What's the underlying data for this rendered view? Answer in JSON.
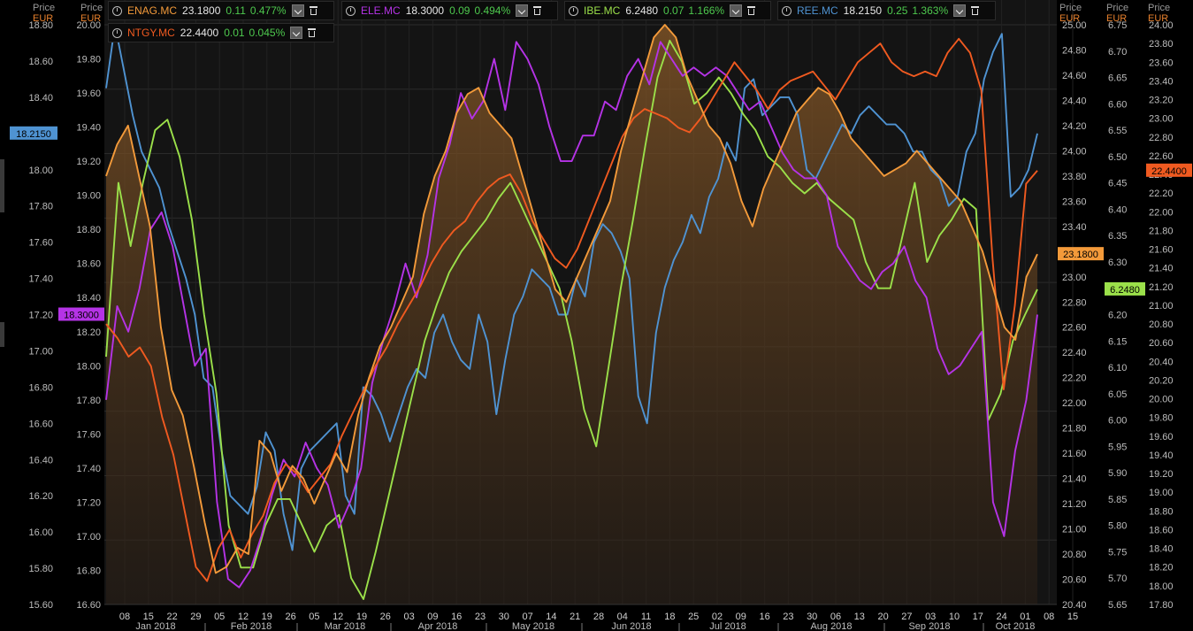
{
  "legend": [
    {
      "symbol": "ENAG.MC",
      "price": "23.1800",
      "change": "0.11",
      "pct": "0.477%",
      "color": "#f39a3a"
    },
    {
      "symbol": "ELE.MC",
      "price": "18.3000",
      "change": "0.09",
      "pct": "0.494%",
      "color": "#b533e6"
    },
    {
      "symbol": "IBE.MC",
      "price": "6.2480",
      "change": "0.07",
      "pct": "1.166%",
      "color": "#9be04a"
    },
    {
      "symbol": "REE.MC",
      "price": "18.2150",
      "change": "0.25",
      "pct": "1.363%",
      "color": "#4f93d2"
    },
    {
      "symbol": "NTGY.MC",
      "price": "22.4400",
      "change": "0.01",
      "pct": "0.045%",
      "color": "#f05a20"
    }
  ],
  "axis_heads": {
    "a1": {
      "p": "Price",
      "u": "EUR"
    },
    "a2": {
      "p": "Price",
      "u": "EUR"
    },
    "a3": {
      "p": "Price",
      "u": "EUR"
    },
    "a4": {
      "p": "Price",
      "u": "EUR"
    },
    "a5": {
      "p": "Price",
      "u": "EUR"
    }
  },
  "chart_data": {
    "type": "line",
    "x_ticks": [
      "08",
      "15",
      "22",
      "29",
      "05",
      "12",
      "19",
      "26",
      "05",
      "12",
      "19",
      "26",
      "03",
      "09",
      "16",
      "23",
      "30",
      "07",
      "14",
      "21",
      "28",
      "04",
      "11",
      "18",
      "25",
      "02",
      "09",
      "16",
      "23",
      "30",
      "06",
      "13",
      "20",
      "27",
      "03",
      "10",
      "17",
      "24",
      "01",
      "08",
      "15"
    ],
    "months": [
      "Jan 2018",
      "Feb 2018",
      "Mar 2018",
      "Apr 2018",
      "May 2018",
      "Jun 2018",
      "Jul 2018",
      "Aug 2018",
      "Sep 2018",
      "Oct 2018"
    ],
    "axes": {
      "REE": {
        "ticks": [
          "18.80",
          "18.60",
          "18.40",
          "18.20",
          "18.00",
          "17.80",
          "17.60",
          "17.40",
          "17.20",
          "17.00",
          "16.80",
          "16.60",
          "16.40",
          "16.20",
          "16.00",
          "15.80",
          "15.60"
        ],
        "min": 15.6,
        "max": 18.8
      },
      "ELE": {
        "ticks": [
          "20.00",
          "19.80",
          "19.60",
          "19.40",
          "19.20",
          "19.00",
          "18.80",
          "18.60",
          "18.40",
          "18.20",
          "18.00",
          "17.80",
          "17.60",
          "17.40",
          "17.20",
          "17.00",
          "16.80",
          "16.60"
        ],
        "min": 16.6,
        "max": 20.0
      },
      "ENAG": {
        "ticks": [
          "25.00",
          "24.80",
          "24.60",
          "24.40",
          "24.20",
          "24.00",
          "23.80",
          "23.60",
          "23.40",
          "23.20",
          "23.00",
          "22.80",
          "22.60",
          "22.40",
          "22.20",
          "22.00",
          "21.80",
          "21.60",
          "21.40",
          "21.20",
          "21.00",
          "20.80",
          "20.60",
          "20.40"
        ],
        "min": 20.4,
        "max": 25.0
      },
      "IBE": {
        "ticks": [
          "6.75",
          "6.70",
          "6.65",
          "6.60",
          "6.55",
          "6.50",
          "6.45",
          "6.40",
          "6.35",
          "6.30",
          "6.25",
          "6.20",
          "6.15",
          "6.10",
          "6.05",
          "6.00",
          "5.95",
          "5.90",
          "5.85",
          "5.80",
          "5.75",
          "5.70",
          "5.65"
        ],
        "min": 5.65,
        "max": 6.75
      },
      "NTGY": {
        "ticks": [
          "24.00",
          "23.80",
          "23.60",
          "23.40",
          "23.20",
          "23.00",
          "22.80",
          "22.60",
          "22.40",
          "22.20",
          "22.00",
          "21.80",
          "21.60",
          "21.40",
          "21.20",
          "21.00",
          "20.80",
          "20.60",
          "20.40",
          "20.20",
          "20.00",
          "19.80",
          "19.60",
          "19.40",
          "19.20",
          "19.00",
          "18.80",
          "18.60",
          "18.40",
          "18.20",
          "18.00",
          "17.80"
        ],
        "min": 17.8,
        "max": 24.0
      }
    },
    "last_labels": {
      "REE": "18.2150",
      "ELE": "18.3000",
      "ENAG": "23.1800",
      "IBE": "6.2480",
      "NTGY": "22.4400"
    },
    "series": [
      {
        "name": "REE.MC",
        "axis": "REE",
        "color": "#4f93d2",
        "values": [
          18.45,
          18.8,
          18.55,
          18.3,
          18.1,
          18.0,
          17.9,
          17.7,
          17.55,
          17.4,
          17.2,
          16.85,
          16.8,
          16.45,
          16.2,
          16.15,
          16.1,
          16.25,
          16.55,
          16.45,
          16.1,
          15.9,
          16.35,
          16.45,
          16.5,
          16.55,
          16.6,
          16.2,
          16.1,
          16.8,
          16.75,
          16.65,
          16.5,
          16.65,
          16.8,
          16.9,
          16.85,
          17.1,
          17.2,
          17.05,
          16.95,
          16.9,
          17.2,
          17.05,
          16.65,
          16.95,
          17.2,
          17.3,
          17.45,
          17.4,
          17.35,
          17.2,
          17.2,
          17.4,
          17.3,
          17.6,
          17.7,
          17.65,
          17.55,
          17.4,
          16.75,
          16.6,
          17.1,
          17.35,
          17.5,
          17.6,
          17.75,
          17.65,
          17.85,
          17.95,
          18.15,
          18.05,
          18.45,
          18.5,
          18.3,
          18.35,
          18.4,
          18.4,
          18.3,
          18.0,
          17.95,
          18.05,
          18.15,
          18.25,
          18.2,
          18.3,
          18.35,
          18.3,
          18.25,
          18.25,
          18.2,
          18.1,
          18.1,
          18.0,
          17.95,
          17.8,
          17.85,
          18.1,
          18.2,
          18.5,
          18.65,
          18.75,
          17.85,
          17.9,
          18.0,
          18.2
        ]
      },
      {
        "name": "ELE.MC",
        "axis": "ELE",
        "color": "#b533e6",
        "values": [
          17.8,
          18.35,
          18.2,
          18.45,
          18.8,
          18.9,
          18.7,
          18.35,
          18.0,
          18.1,
          17.2,
          16.75,
          16.7,
          16.8,
          17.0,
          17.25,
          17.45,
          17.35,
          17.55,
          17.4,
          17.3,
          17.05,
          17.2,
          17.4,
          17.9,
          18.15,
          18.35,
          18.6,
          18.4,
          18.65,
          19.1,
          19.3,
          19.6,
          19.45,
          19.55,
          19.8,
          19.5,
          19.9,
          19.8,
          19.65,
          19.4,
          19.2,
          19.2,
          19.35,
          19.35,
          19.55,
          19.5,
          19.7,
          19.8,
          19.65,
          19.9,
          19.8,
          19.7,
          19.75,
          19.7,
          19.75,
          19.7,
          19.6,
          19.5,
          19.55,
          19.4,
          19.25,
          19.15,
          19.1,
          19.1,
          19.0,
          18.7,
          18.6,
          18.5,
          18.45,
          18.55,
          18.6,
          18.7,
          18.5,
          18.4,
          18.1,
          17.95,
          18.0,
          18.1,
          18.2,
          17.2,
          17.0,
          17.5,
          17.8,
          18.3
        ]
      },
      {
        "name": "ENAG.MC",
        "axis": "ENAG",
        "color": "#f39a3a",
        "values": [
          23.8,
          24.05,
          24.2,
          23.8,
          23.4,
          22.6,
          22.1,
          21.9,
          21.5,
          21.05,
          20.65,
          20.7,
          20.85,
          20.8,
          21.7,
          21.6,
          21.3,
          21.5,
          21.4,
          21.2,
          21.4,
          21.6,
          21.45,
          21.9,
          22.2,
          22.45,
          22.6,
          22.8,
          23.0,
          23.5,
          23.8,
          24.0,
          24.3,
          24.45,
          24.5,
          24.3,
          24.2,
          24.1,
          23.8,
          23.5,
          23.2,
          22.9,
          22.8,
          23.0,
          23.2,
          23.4,
          23.6,
          24.0,
          24.3,
          24.6,
          24.9,
          25.0,
          24.9,
          24.6,
          24.4,
          24.2,
          24.1,
          23.9,
          23.6,
          23.4,
          23.7,
          23.9,
          24.1,
          24.3,
          24.4,
          24.5,
          24.45,
          24.3,
          24.1,
          24.0,
          23.9,
          23.8,
          23.85,
          23.9,
          24.0,
          23.9,
          23.8,
          23.7,
          23.6,
          23.4,
          23.2,
          22.9,
          22.6,
          22.5,
          23.0,
          23.18
        ]
      },
      {
        "name": "IBE.MC",
        "axis": "IBE",
        "color": "#9be04a",
        "values": [
          6.12,
          6.45,
          6.33,
          6.45,
          6.55,
          6.57,
          6.5,
          6.38,
          6.2,
          6.05,
          5.8,
          5.72,
          5.72,
          5.8,
          5.85,
          5.85,
          5.8,
          5.75,
          5.8,
          5.82,
          5.7,
          5.66,
          5.75,
          5.85,
          5.95,
          6.05,
          6.15,
          6.22,
          6.28,
          6.32,
          6.35,
          6.38,
          6.42,
          6.45,
          6.4,
          6.35,
          6.3,
          6.25,
          6.15,
          6.02,
          5.95,
          6.1,
          6.25,
          6.38,
          6.52,
          6.65,
          6.72,
          6.68,
          6.6,
          6.62,
          6.65,
          6.62,
          6.58,
          6.55,
          6.5,
          6.48,
          6.45,
          6.43,
          6.45,
          6.42,
          6.4,
          6.38,
          6.3,
          6.25,
          6.25,
          6.35,
          6.45,
          6.3,
          6.35,
          6.38,
          6.42,
          6.4,
          6.0,
          6.05,
          6.15,
          6.2,
          6.248
        ]
      },
      {
        "name": "NTGY.MC",
        "axis": "NTGY",
        "color": "#f05a20",
        "values": [
          20.8,
          20.65,
          20.45,
          20.55,
          20.35,
          19.8,
          19.4,
          18.8,
          18.2,
          18.05,
          18.4,
          18.6,
          18.3,
          18.55,
          18.75,
          19.1,
          19.3,
          19.2,
          19.0,
          19.15,
          19.3,
          19.6,
          19.85,
          20.1,
          20.35,
          20.55,
          20.8,
          21.0,
          21.2,
          21.45,
          21.65,
          21.8,
          21.9,
          22.1,
          22.25,
          22.35,
          22.4,
          22.2,
          21.9,
          21.7,
          21.5,
          21.4,
          21.6,
          21.9,
          22.2,
          22.5,
          22.8,
          23.0,
          23.1,
          23.05,
          23.0,
          22.9,
          22.85,
          23.0,
          23.2,
          23.4,
          23.6,
          23.45,
          23.3,
          23.1,
          23.3,
          23.4,
          23.45,
          23.5,
          23.35,
          23.2,
          23.4,
          23.6,
          23.7,
          23.8,
          23.6,
          23.5,
          23.45,
          23.5,
          23.45,
          23.7,
          23.85,
          23.7,
          23.3,
          21.5,
          20.1,
          21.0,
          22.3,
          22.44
        ]
      }
    ]
  }
}
